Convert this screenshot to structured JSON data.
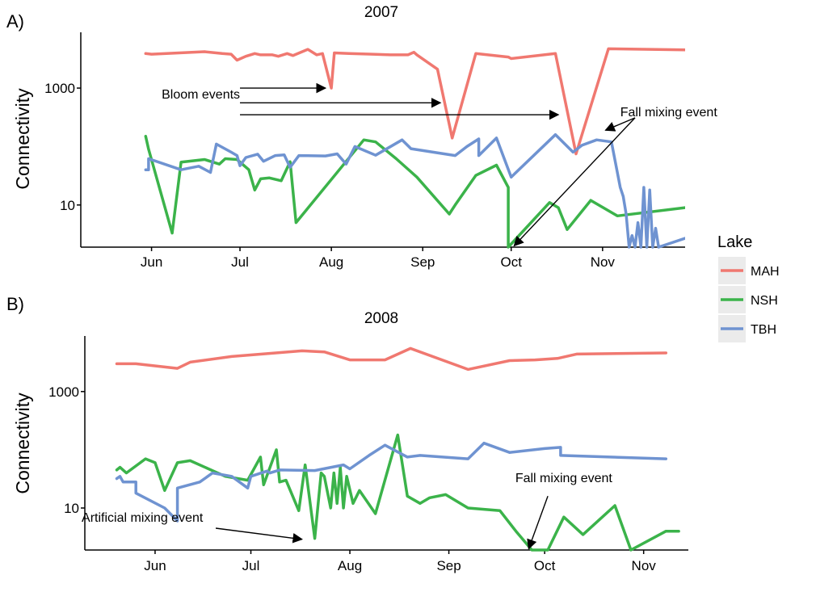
{
  "colors": {
    "MAH": "#F07870",
    "NSH": "#3BB34A",
    "TBH": "#6F93D1",
    "axis": "#000000",
    "legend_key_bg": "#EBEBEB"
  },
  "legend": {
    "title": "Lake",
    "entries": [
      "MAH",
      "NSH",
      "TBH"
    ]
  },
  "chart_data": [
    {
      "type": "line",
      "panel_label": "A)",
      "title": "2007",
      "xlabel": "",
      "ylabel": "Connectivity",
      "y_scale": "log",
      "ylim": [
        1.9,
        9000
      ],
      "yticks": [
        {
          "value": 10,
          "label": "10"
        },
        {
          "value": 1000,
          "label": "1000"
        }
      ],
      "xlim": [
        "2007-05-08",
        "2007-11-29"
      ],
      "xticks": [
        {
          "date": "2007-06-01",
          "label": "Jun"
        },
        {
          "date": "2007-07-01",
          "label": "Jul"
        },
        {
          "date": "2007-08-01",
          "label": "Aug"
        },
        {
          "date": "2007-09-01",
          "label": "Sep"
        },
        {
          "date": "2007-10-01",
          "label": "Oct"
        },
        {
          "date": "2007-11-01",
          "label": "Nov"
        }
      ],
      "series": [
        {
          "name": "MAH",
          "points": [
            [
              "2007-05-30",
              3900
            ],
            [
              "2007-06-01",
              3800
            ],
            [
              "2007-06-19",
              4200
            ],
            [
              "2007-06-25",
              3900
            ],
            [
              "2007-06-28",
              3800
            ],
            [
              "2007-06-30",
              3000
            ],
            [
              "2007-07-03",
              3500
            ],
            [
              "2007-07-06",
              3900
            ],
            [
              "2007-07-08",
              3700
            ],
            [
              "2007-07-12",
              3700
            ],
            [
              "2007-07-14",
              3500
            ],
            [
              "2007-07-17",
              3900
            ],
            [
              "2007-07-19",
              3600
            ],
            [
              "2007-07-24",
              4600
            ],
            [
              "2007-07-27",
              3700
            ],
            [
              "2007-07-29",
              3900
            ],
            [
              "2007-08-01",
              1000
            ],
            [
              "2007-08-02",
              4000
            ],
            [
              "2007-08-07",
              3900
            ],
            [
              "2007-08-15",
              3800
            ],
            [
              "2007-08-21",
              3700
            ],
            [
              "2007-08-27",
              3700
            ],
            [
              "2007-08-29",
              4100
            ],
            [
              "2007-08-30",
              3700
            ],
            [
              "2007-09-06",
              2100
            ],
            [
              "2007-09-11",
              140
            ],
            [
              "2007-09-19",
              3900
            ],
            [
              "2007-09-30",
              3400
            ],
            [
              "2007-10-01",
              3200
            ],
            [
              "2007-10-16",
              3900
            ],
            [
              "2007-10-23",
              75
            ],
            [
              "2007-11-03",
              4700
            ],
            [
              "2007-11-29",
              4500
            ]
          ]
        },
        {
          "name": "NSH",
          "points": [
            [
              "2007-05-30",
              150
            ],
            [
              "2007-05-31",
              90
            ],
            [
              "2007-06-08",
              3.3
            ],
            [
              "2007-06-11",
              54
            ],
            [
              "2007-06-15",
              57
            ],
            [
              "2007-06-19",
              60
            ],
            [
              "2007-06-24",
              50
            ],
            [
              "2007-06-26",
              62
            ],
            [
              "2007-06-30",
              60
            ],
            [
              "2007-07-04",
              40
            ],
            [
              "2007-07-06",
              18
            ],
            [
              "2007-07-08",
              28
            ],
            [
              "2007-07-11",
              29
            ],
            [
              "2007-07-15",
              26
            ],
            [
              "2007-07-18",
              55
            ],
            [
              "2007-07-20",
              5
            ],
            [
              "2007-08-12",
              130
            ],
            [
              "2007-08-16",
              120
            ],
            [
              "2007-08-23",
              62
            ],
            [
              "2007-08-30",
              30
            ],
            [
              "2007-09-10",
              7
            ],
            [
              "2007-09-12",
              10
            ],
            [
              "2007-09-19",
              32
            ],
            [
              "2007-09-26",
              48
            ],
            [
              "2007-09-30",
              20
            ],
            [
              "2007-09-30",
              1.9
            ],
            [
              "2007-10-14",
              11
            ],
            [
              "2007-10-17",
              9
            ],
            [
              "2007-10-20",
              3.8
            ],
            [
              "2007-10-28",
              12
            ],
            [
              "2007-11-06",
              6.5
            ],
            [
              "2007-11-29",
              9
            ]
          ]
        },
        {
          "name": "TBH",
          "points": [
            [
              "2007-05-30",
              40
            ],
            [
              "2007-05-31",
              40
            ],
            [
              "2007-05-31",
              62
            ],
            [
              "2007-06-11",
              40
            ],
            [
              "2007-06-13",
              42
            ],
            [
              "2007-06-17",
              46
            ],
            [
              "2007-06-21",
              36
            ],
            [
              "2007-06-23",
              110
            ],
            [
              "2007-06-28",
              80
            ],
            [
              "2007-06-30",
              70
            ],
            [
              "2007-07-01",
              47
            ],
            [
              "2007-07-03",
              65
            ],
            [
              "2007-07-07",
              74
            ],
            [
              "2007-07-09",
              56
            ],
            [
              "2007-07-13",
              70
            ],
            [
              "2007-07-16",
              72
            ],
            [
              "2007-07-18",
              44
            ],
            [
              "2007-07-21",
              70
            ],
            [
              "2007-07-30",
              69
            ],
            [
              "2007-08-03",
              75
            ],
            [
              "2007-08-06",
              50
            ],
            [
              "2007-08-09",
              100
            ],
            [
              "2007-08-16",
              71
            ],
            [
              "2007-08-25",
              130
            ],
            [
              "2007-08-28",
              92
            ],
            [
              "2007-09-12",
              70
            ],
            [
              "2007-09-16",
              100
            ],
            [
              "2007-09-20",
              135
            ],
            [
              "2007-09-20",
              70
            ],
            [
              "2007-09-26",
              140
            ],
            [
              "2007-10-01",
              30
            ],
            [
              "2007-10-16",
              160
            ],
            [
              "2007-10-22",
              80
            ],
            [
              "2007-10-25",
              105
            ],
            [
              "2007-10-30",
              130
            ],
            [
              "2007-11-04",
              120
            ],
            [
              "2007-11-07",
              20
            ],
            [
              "2007-11-08",
              14
            ],
            [
              "2007-11-09",
              7
            ],
            [
              "2007-11-10",
              1.9
            ],
            [
              "2007-11-11",
              3
            ],
            [
              "2007-11-12",
              1.9
            ],
            [
              "2007-11-13",
              5
            ],
            [
              "2007-11-14",
              1.9
            ],
            [
              "2007-11-15",
              20
            ],
            [
              "2007-11-16",
              1.9
            ],
            [
              "2007-11-17",
              18
            ],
            [
              "2007-11-18",
              1.9
            ],
            [
              "2007-11-19",
              4
            ],
            [
              "2007-11-20",
              1.9
            ],
            [
              "2007-11-29",
              2.7
            ]
          ]
        }
      ],
      "annotations": [
        {
          "text": "Bloom events",
          "anchor": "end",
          "tx": "2007-07-01",
          "ty": 660
        },
        {
          "text": "Fall mixing event",
          "anchor": "start",
          "tx": "2007-11-07",
          "ty": 330
        }
      ],
      "arrows": [
        {
          "from": [
            "2007-07-01",
            1000
          ],
          "to": [
            "2007-07-30",
            1000
          ]
        },
        {
          "from": [
            "2007-07-01",
            560
          ],
          "to": [
            "2007-09-07",
            560
          ]
        },
        {
          "from": [
            "2007-07-01",
            350
          ],
          "to": [
            "2007-10-17",
            350
          ]
        },
        {
          "from": [
            "2007-11-12",
            310
          ],
          "to": [
            "2007-11-02",
            190
          ]
        },
        {
          "from": [
            "2007-11-12",
            310
          ],
          "to": [
            "2007-10-02",
            2.0
          ]
        }
      ]
    },
    {
      "type": "line",
      "panel_label": "B)",
      "title": "2008",
      "xlabel": "",
      "ylabel": "Connectivity",
      "y_scale": "log",
      "ylim": [
        1.9,
        9000
      ],
      "yticks": [
        {
          "value": 10,
          "label": "10"
        },
        {
          "value": 1000,
          "label": "1000"
        }
      ],
      "xlim": [
        "2008-05-10",
        "2008-11-15"
      ],
      "xticks": [
        {
          "date": "2008-06-01",
          "label": "Jun"
        },
        {
          "date": "2008-07-01",
          "label": "Jul"
        },
        {
          "date": "2008-08-01",
          "label": "Aug"
        },
        {
          "date": "2008-09-01",
          "label": "Sep"
        },
        {
          "date": "2008-10-01",
          "label": "Oct"
        },
        {
          "date": "2008-11-01",
          "label": "Nov"
        }
      ],
      "series": [
        {
          "name": "MAH",
          "points": [
            [
              "2008-05-20",
              3000
            ],
            [
              "2008-05-26",
              3000
            ],
            [
              "2008-06-08",
              2500
            ],
            [
              "2008-06-12",
              3200
            ],
            [
              "2008-06-25",
              4000
            ],
            [
              "2008-07-17",
              5000
            ],
            [
              "2008-07-24",
              4800
            ],
            [
              "2008-08-01",
              3500
            ],
            [
              "2008-08-12",
              3500
            ],
            [
              "2008-08-20",
              5500
            ],
            [
              "2008-09-07",
              2400
            ],
            [
              "2008-09-20",
              3400
            ],
            [
              "2008-09-28",
              3500
            ],
            [
              "2008-10-05",
              3700
            ],
            [
              "2008-10-11",
              4400
            ],
            [
              "2008-11-08",
              4600
            ]
          ]
        },
        {
          "name": "NSH",
          "points": [
            [
              "2008-05-20",
              45
            ],
            [
              "2008-05-21",
              50
            ],
            [
              "2008-05-23",
              40
            ],
            [
              "2008-05-29",
              70
            ],
            [
              "2008-06-01",
              60
            ],
            [
              "2008-06-04",
              20
            ],
            [
              "2008-06-08",
              60
            ],
            [
              "2008-06-12",
              65
            ],
            [
              "2008-06-23",
              35
            ],
            [
              "2008-06-30",
              30
            ],
            [
              "2008-07-04",
              75
            ],
            [
              "2008-07-05",
              25
            ],
            [
              "2008-07-09",
              100
            ],
            [
              "2008-07-10",
              28
            ],
            [
              "2008-07-12",
              30
            ],
            [
              "2008-07-16",
              9
            ],
            [
              "2008-07-18",
              55
            ],
            [
              "2008-07-21",
              3
            ],
            [
              "2008-07-23",
              40
            ],
            [
              "2008-07-24",
              35
            ],
            [
              "2008-07-26",
              10
            ],
            [
              "2008-07-27",
              40
            ],
            [
              "2008-07-28",
              12
            ],
            [
              "2008-07-29",
              50
            ],
            [
              "2008-07-30",
              10
            ],
            [
              "2008-07-31",
              35
            ],
            [
              "2008-08-02",
              12
            ],
            [
              "2008-08-04",
              20
            ],
            [
              "2008-08-09",
              8
            ],
            [
              "2008-08-16",
              180
            ],
            [
              "2008-08-19",
              16
            ],
            [
              "2008-08-23",
              12
            ],
            [
              "2008-08-26",
              15
            ],
            [
              "2008-08-31",
              17
            ],
            [
              "2008-09-07",
              10
            ],
            [
              "2008-09-17",
              9
            ],
            [
              "2008-09-22",
              4
            ],
            [
              "2008-09-27",
              1.9
            ],
            [
              "2008-10-02",
              1.9
            ],
            [
              "2008-10-07",
              7
            ],
            [
              "2008-10-13",
              3.5
            ],
            [
              "2008-10-23",
              11
            ],
            [
              "2008-10-28",
              1.9
            ],
            [
              "2008-11-08",
              4
            ],
            [
              "2008-11-12",
              4
            ]
          ]
        },
        {
          "name": "TBH",
          "points": [
            [
              "2008-05-20",
              32
            ],
            [
              "2008-05-21",
              35
            ],
            [
              "2008-05-22",
              28
            ],
            [
              "2008-05-26",
              28
            ],
            [
              "2008-05-26",
              18
            ],
            [
              "2008-06-04",
              10
            ],
            [
              "2008-06-08",
              6
            ],
            [
              "2008-06-08",
              22
            ],
            [
              "2008-06-15",
              28
            ],
            [
              "2008-06-19",
              40
            ],
            [
              "2008-06-25",
              35
            ],
            [
              "2008-06-30",
              22
            ],
            [
              "2008-07-01",
              35
            ],
            [
              "2008-07-06",
              43
            ],
            [
              "2008-07-07",
              40
            ],
            [
              "2008-07-10",
              45
            ],
            [
              "2008-07-21",
              44
            ],
            [
              "2008-07-30",
              55
            ],
            [
              "2008-08-01",
              47
            ],
            [
              "2008-08-07",
              80
            ],
            [
              "2008-08-12",
              120
            ],
            [
              "2008-08-19",
              75
            ],
            [
              "2008-08-23",
              80
            ],
            [
              "2008-09-07",
              70
            ],
            [
              "2008-09-12",
              130
            ],
            [
              "2008-09-20",
              90
            ],
            [
              "2008-10-01",
              105
            ],
            [
              "2008-10-06",
              110
            ],
            [
              "2008-10-06",
              80
            ],
            [
              "2008-11-08",
              70
            ]
          ]
        }
      ],
      "annotations": [
        {
          "text": "Fall mixing event",
          "anchor": "middle",
          "tx": "2008-10-07",
          "ty": 28
        },
        {
          "text": "Artificial mixing event",
          "anchor": "start",
          "tx": "2008-05-09",
          "ty": 5.8
        }
      ],
      "arrows": [
        {
          "from": [
            "2008-10-02",
            16
          ],
          "to": [
            "2008-09-26",
            2.0
          ]
        },
        {
          "from": [
            "2008-06-20",
            4.5
          ],
          "to": [
            "2008-07-17",
            2.9
          ]
        }
      ]
    }
  ]
}
